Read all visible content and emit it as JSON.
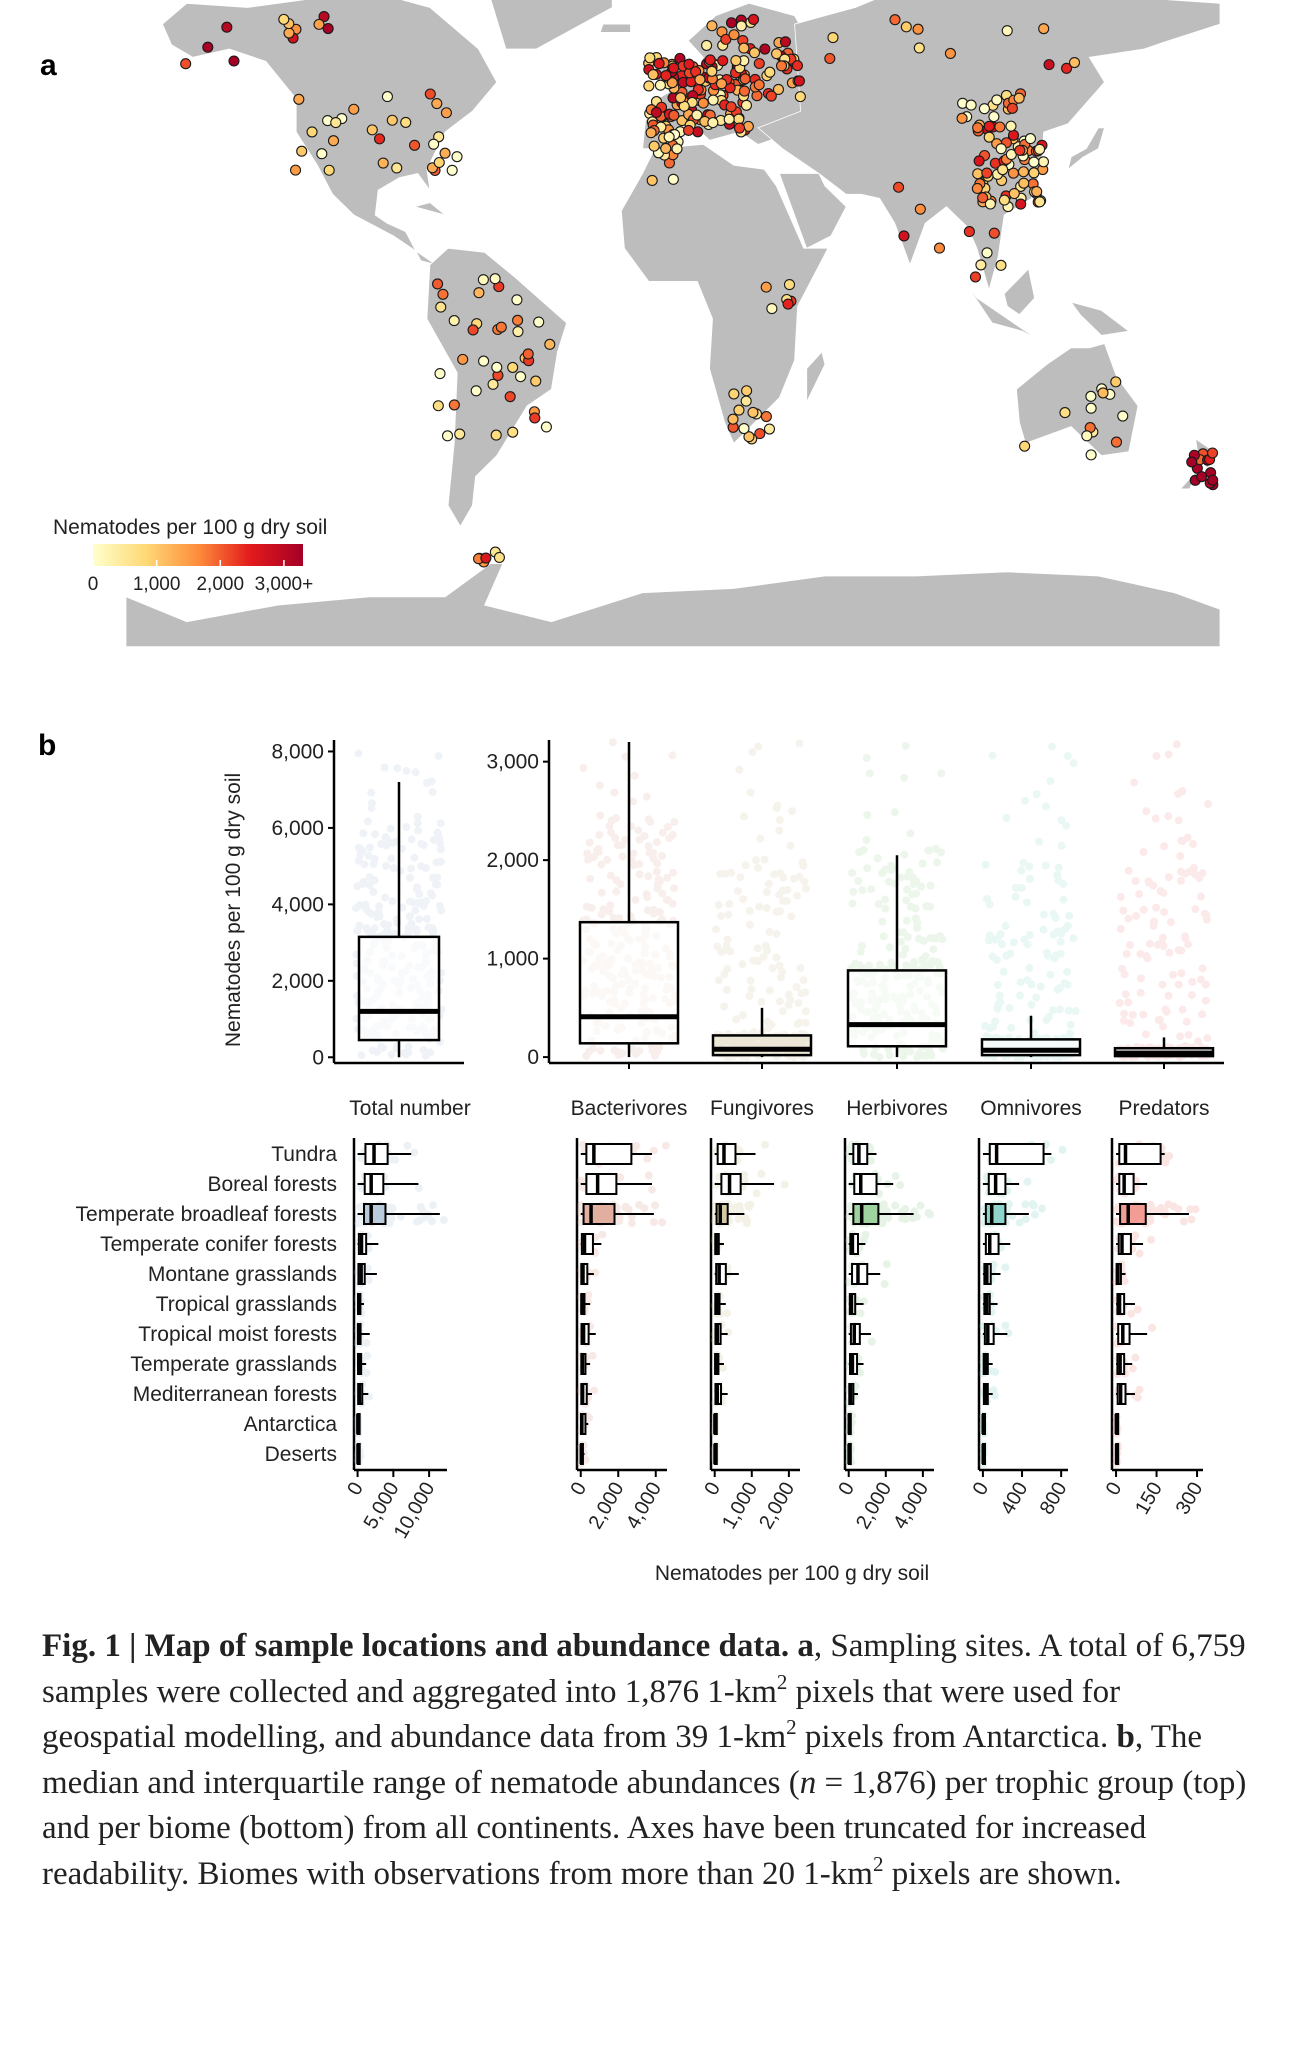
{
  "panel_a": {
    "label": "a",
    "legend": {
      "title": "Nematodes per 100 g dry soil",
      "ticks": [
        "0",
        "1,000",
        "2,000",
        "3,000+"
      ],
      "tick_values": [
        0,
        1000,
        2000,
        3000
      ],
      "domain": [
        0,
        3300
      ],
      "colors": [
        "#ffffcc",
        "#fed976",
        "#fd8d3c",
        "#e31a1c",
        "#a50026"
      ]
    },
    "land_color": "#bdbdbd",
    "site_clusters": [
      {
        "name": "Western Europe",
        "lon": [
          -8,
          25
        ],
        "lat": [
          40,
          58
        ],
        "n": 150,
        "level": 0.5
      },
      {
        "name": "Iberia and West Africa",
        "lon": [
          -9,
          2
        ],
        "lat": [
          28,
          42
        ],
        "n": 18,
        "level": 0.25
      },
      {
        "name": "Eastern Europe",
        "lon": [
          25,
          42
        ],
        "lat": [
          48,
          62
        ],
        "n": 30,
        "level": 0.6
      },
      {
        "name": "Scandinavia",
        "lon": [
          10,
          30
        ],
        "lat": [
          58,
          68
        ],
        "n": 14,
        "level": 0.55
      },
      {
        "name": "China",
        "lon": [
          100,
          122
        ],
        "lat": [
          22,
          42
        ],
        "n": 70,
        "level": 0.4
      },
      {
        "name": "Mongolia",
        "lon": [
          95,
          115
        ],
        "lat": [
          43,
          50
        ],
        "n": 15,
        "level": 0.3
      },
      {
        "name": "North America",
        "lon": [
          -125,
          -70
        ],
        "lat": [
          30,
          50
        ],
        "n": 30,
        "level": 0.3
      },
      {
        "name": "Alaska and Canada",
        "lon": [
          -165,
          -110
        ],
        "lat": [
          55,
          70
        ],
        "n": 12,
        "level": 0.7
      },
      {
        "name": "South America",
        "lon": [
          -78,
          -40
        ],
        "lat": [
          -35,
          5
        ],
        "n": 40,
        "level": 0.25
      },
      {
        "name": "Southern Africa",
        "lon": [
          18,
          32
        ],
        "lat": [
          -34,
          -22
        ],
        "n": 14,
        "level": 0.35
      },
      {
        "name": "East Africa",
        "lon": [
          30,
          40
        ],
        "lat": [
          -10,
          5
        ],
        "n": 6,
        "level": 0.3
      },
      {
        "name": "Australia",
        "lon": [
          115,
          153
        ],
        "lat": [
          -38,
          -20
        ],
        "n": 14,
        "level": 0.2
      },
      {
        "name": "New Zealand",
        "lon": [
          168,
          178
        ],
        "lat": [
          -46,
          -36
        ],
        "n": 14,
        "level": 0.95
      },
      {
        "name": "Antarctic Peninsula",
        "lon": [
          -64,
          -56
        ],
        "lat": [
          -64,
          -61
        ],
        "n": 6,
        "level": 0.6
      },
      {
        "name": "Southeast Asia",
        "lon": [
          97,
          108
        ],
        "lat": [
          5,
          20
        ],
        "n": 6,
        "level": 0.25
      },
      {
        "name": "Russia",
        "lon": [
          50,
          140
        ],
        "lat": [
          55,
          68
        ],
        "n": 12,
        "level": 0.5
      },
      {
        "name": "India",
        "lon": [
          73,
          88
        ],
        "lat": [
          10,
          28
        ],
        "n": 4,
        "level": 0.4
      }
    ]
  },
  "panel_b": {
    "label": "b",
    "y_axis_label": "Nematodes per 100 g dry soil",
    "x_axis_label": "Nematodes per 100 g dry soil"
  },
  "chart_data": [
    {
      "type": "box",
      "title": "Total number",
      "ylabel": "Nematodes per 100 g dry soil",
      "ylim": [
        -150,
        8300
      ],
      "yticks": [
        0,
        2000,
        4000,
        6000,
        8000
      ],
      "ytick_labels": [
        "0",
        "2,000",
        "4,000",
        "6,000",
        "8,000"
      ],
      "boxes": [
        {
          "name": "Total number",
          "lo": 0,
          "q1": 450,
          "median": 1200,
          "q3": 3150,
          "hi": 7200,
          "color": "#9fb8cf"
        }
      ]
    },
    {
      "type": "box",
      "ylim": [
        -60,
        3220
      ],
      "yticks": [
        0,
        1000,
        2000,
        3000
      ],
      "ytick_labels": [
        "0",
        "1,000",
        "2,000",
        "3,000"
      ],
      "boxes": [
        {
          "name": "Bacterivores",
          "lo": 0,
          "q1": 140,
          "median": 410,
          "q3": 1370,
          "hi": 3200,
          "color": "#d7a08c",
          "fill": "#ffffff"
        },
        {
          "name": "Fungivores",
          "lo": 0,
          "q1": 20,
          "median": 80,
          "q3": 220,
          "hi": 500,
          "color": "#c8b98a",
          "fill": "#e3dcc3"
        },
        {
          "name": "Herbivores",
          "lo": 0,
          "q1": 110,
          "median": 330,
          "q3": 880,
          "hi": 2050,
          "color": "#8fca8a",
          "fill": "#ffffff"
        },
        {
          "name": "Omnivores",
          "lo": 0,
          "q1": 20,
          "median": 70,
          "q3": 180,
          "hi": 420,
          "color": "#7ecfc3",
          "fill": "#ffffff"
        },
        {
          "name": "Predators",
          "lo": 0,
          "q1": 10,
          "median": 40,
          "q3": 90,
          "hi": 200,
          "color": "#f08080",
          "fill": "#ffffff"
        }
      ]
    },
    {
      "type": "box",
      "orientation": "horizontal",
      "biomes": [
        "Tundra",
        "Boreal forests",
        "Temperate broadleaf forests",
        "Temperate conifer forests",
        "Montane grasslands",
        "Tropical grasslands",
        "Tropical moist forests",
        "Temperate grasslands",
        "Mediterranean forests",
        "Antarctica",
        "Deserts"
      ],
      "panels": [
        {
          "group": "Total number",
          "xlim": [
            -500,
            12500
          ],
          "xticks": [
            0,
            5000,
            10000
          ],
          "xtick_labels": [
            "0",
            "5,000",
            "10,000"
          ],
          "color": "#a6bdd4",
          "boxes": [
            [
              0,
              1100,
              2300,
              4200,
              7500
            ],
            [
              0,
              1000,
              1900,
              3600,
              8500
            ],
            [
              0,
              900,
              1900,
              3900,
              11500
            ],
            [
              0,
              180,
              550,
              1200,
              2900
            ],
            [
              0,
              120,
              500,
              1000,
              2700
            ],
            [
              0,
              60,
              180,
              400,
              900
            ],
            [
              0,
              60,
              150,
              420,
              1700
            ],
            [
              0,
              60,
              200,
              500,
              1200
            ],
            [
              0,
              80,
              250,
              650,
              1500
            ],
            [
              0,
              10,
              40,
              100,
              200
            ],
            [
              0,
              20,
              60,
              150,
              350
            ]
          ]
        },
        {
          "group": "Bacterivores",
          "xlim": [
            -200,
            4600
          ],
          "xticks": [
            0,
            2000,
            4000
          ],
          "xtick_labels": [
            "0",
            "2,000",
            "4,000"
          ],
          "color": "#d99a87",
          "boxes": [
            [
              0,
              300,
              700,
              2700,
              3800
            ],
            [
              0,
              300,
              900,
              1900,
              3800
            ],
            [
              0,
              150,
              550,
              1800,
              3900
            ],
            [
              0,
              60,
              200,
              650,
              1100
            ],
            [
              0,
              30,
              120,
              350,
              700
            ],
            [
              0,
              30,
              70,
              200,
              500
            ],
            [
              0,
              40,
              150,
              420,
              800
            ],
            [
              0,
              30,
              90,
              250,
              500
            ],
            [
              0,
              30,
              100,
              320,
              600
            ],
            [
              0,
              10,
              60,
              250,
              400
            ],
            [
              0,
              10,
              30,
              80,
              200
            ]
          ]
        },
        {
          "group": "Fungivores",
          "xlim": [
            -100,
            2300
          ],
          "xticks": [
            0,
            1000,
            2000
          ],
          "xtick_labels": [
            "0",
            "1,000",
            "2,000"
          ],
          "color": "#c9bb8c",
          "boxes": [
            [
              0,
              80,
              250,
              560,
              1100
            ],
            [
              0,
              180,
              400,
              700,
              1600
            ],
            [
              0,
              50,
              150,
              350,
              800
            ],
            [
              0,
              15,
              40,
              110,
              250
            ],
            [
              0,
              40,
              120,
              300,
              650
            ],
            [
              0,
              15,
              60,
              130,
              300
            ],
            [
              0,
              20,
              70,
              160,
              350
            ],
            [
              0,
              10,
              40,
              100,
              250
            ],
            [
              0,
              20,
              70,
              170,
              350
            ],
            [
              0,
              2,
              5,
              15,
              30
            ],
            [
              0,
              2,
              8,
              20,
              50
            ]
          ]
        },
        {
          "group": "Herbivores",
          "xlim": [
            -200,
            4600
          ],
          "xticks": [
            0,
            2000,
            4000
          ],
          "xtick_labels": [
            "0",
            "2,000",
            "4,000"
          ],
          "color": "#86c785",
          "boxes": [
            [
              0,
              250,
              550,
              1000,
              1500
            ],
            [
              0,
              300,
              650,
              1500,
              2400
            ],
            [
              0,
              250,
              700,
              1600,
              3500
            ],
            [
              0,
              90,
              200,
              500,
              900
            ],
            [
              0,
              180,
              500,
              1000,
              1700
            ],
            [
              0,
              60,
              150,
              350,
              800
            ],
            [
              0,
              120,
              300,
              600,
              1200
            ],
            [
              0,
              70,
              200,
              450,
              800
            ],
            [
              0,
              30,
              100,
              250,
              500
            ],
            [
              0,
              5,
              30,
              80,
              150
            ],
            [
              0,
              5,
              20,
              60,
              120
            ]
          ]
        },
        {
          "group": "Omnivores",
          "xlim": [
            -40,
            870
          ],
          "xticks": [
            0,
            400,
            800
          ],
          "xtick_labels": [
            "0",
            "400",
            "800"
          ],
          "color": "#72c9bd",
          "boxes": [
            [
              0,
              70,
              140,
              620,
              700
            ],
            [
              0,
              60,
              130,
              230,
              370
            ],
            [
              0,
              30,
              90,
              230,
              470
            ],
            [
              0,
              30,
              70,
              160,
              280
            ],
            [
              0,
              15,
              40,
              80,
              180
            ],
            [
              0,
              15,
              40,
              70,
              150
            ],
            [
              0,
              20,
              50,
              110,
              250
            ],
            [
              0,
              8,
              25,
              50,
              100
            ],
            [
              0,
              10,
              25,
              50,
              100
            ],
            [
              0,
              1,
              3,
              6,
              15
            ],
            [
              0,
              1,
              3,
              8,
              20
            ]
          ]
        },
        {
          "group": "Predators",
          "xlim": [
            -15,
            322
          ],
          "xticks": [
            0,
            150,
            300
          ],
          "xtick_labels": [
            "0",
            "150",
            "300"
          ],
          "color": "#f08378",
          "boxes": [
            [
              0,
              12,
              35,
              165,
              180
            ],
            [
              0,
              12,
              30,
              65,
              115
            ],
            [
              0,
              15,
              45,
              110,
              270
            ],
            [
              0,
              10,
              22,
              55,
              100
            ],
            [
              0,
              2,
              7,
              18,
              35
            ],
            [
              0,
              5,
              13,
              30,
              70
            ],
            [
              0,
              8,
              25,
              50,
              115
            ],
            [
              0,
              5,
              15,
              30,
              60
            ],
            [
              0,
              6,
              17,
              35,
              70
            ],
            [
              0,
              0.5,
              1,
              2,
              4
            ],
            [
              0,
              0.5,
              2,
              4,
              8
            ]
          ]
        }
      ]
    }
  ],
  "caption": {
    "fig": "Fig. 1 |",
    "title": "Map of sample locations and abundance data.",
    "a_label": "a",
    "a_text_1": ", Sampling sites. A total of 6,759 samples were collected and aggregated into 1,876 1-km",
    "sup1": "2",
    "a_text_2": " pixels that were used for geospatial modelling, and abundance data from 39 1-km",
    "sup2": "2",
    "a_text_3": " pixels from Antarctica.",
    "b_label": "b",
    "b_text_1": ", The median and interquartile range of nematode abundances (",
    "n_var": "n",
    "b_text_2": " = 1,876) per trophic group (top) and per biome (bottom) from all continents. Axes have been truncated for increased readability. Biomes with observations from more than 20 1-km",
    "sup3": "2",
    "b_text_3": " pixels are shown."
  }
}
